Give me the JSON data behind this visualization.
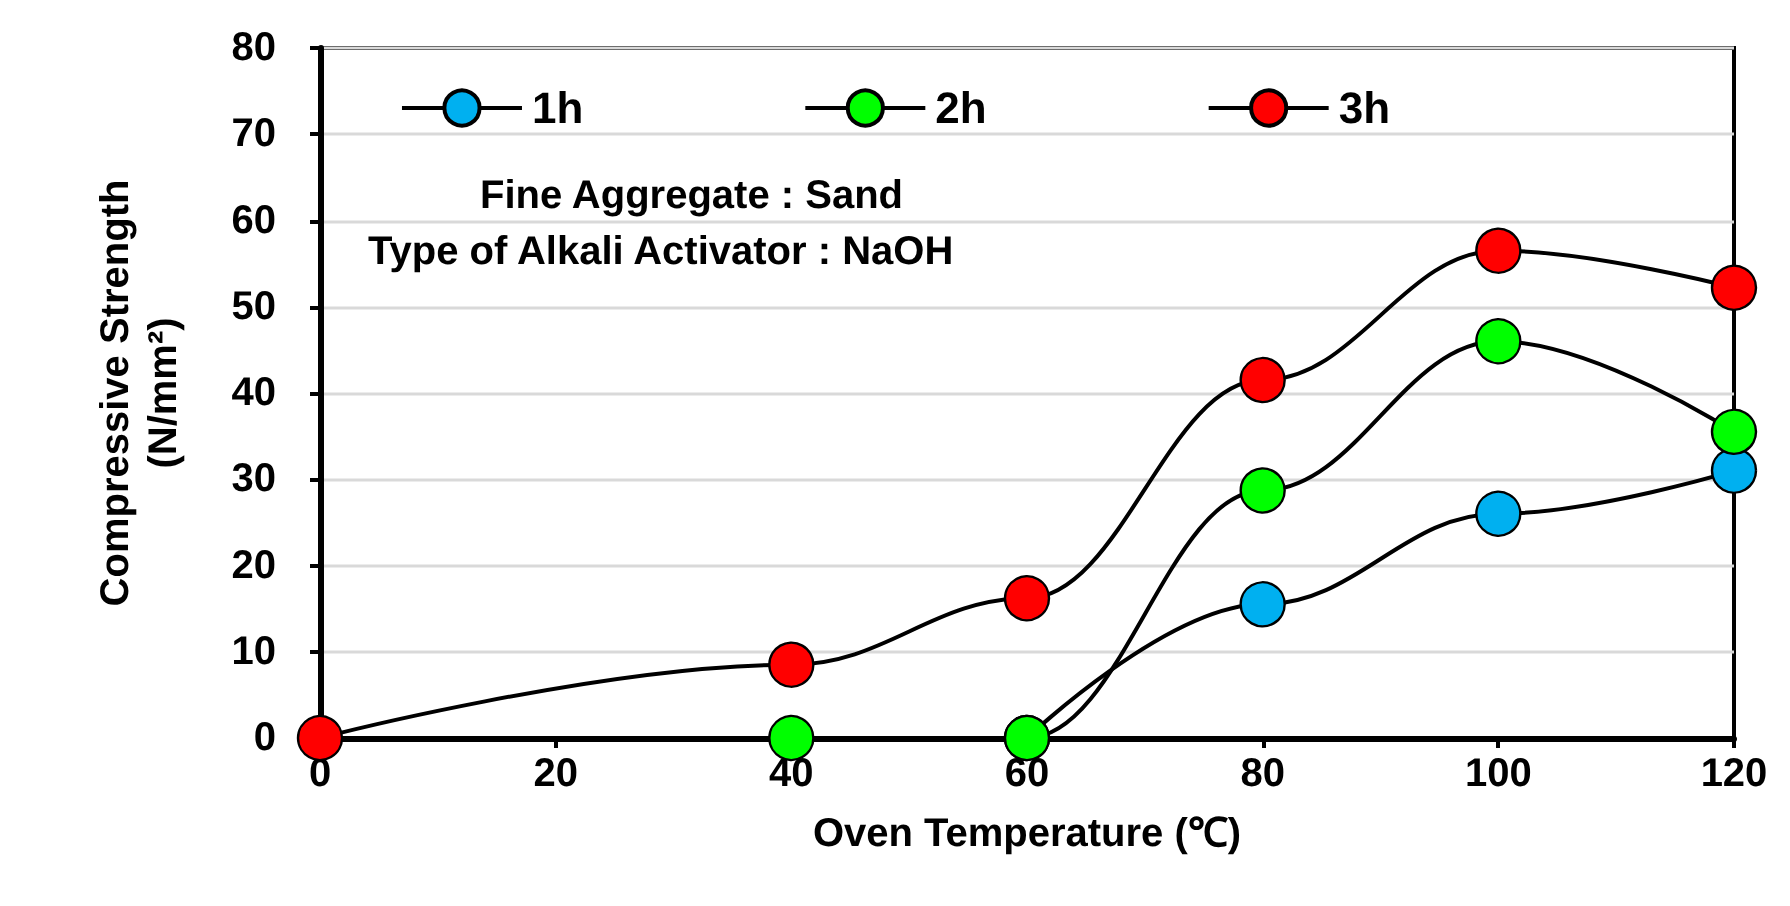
{
  "chart_data": {
    "type": "line",
    "xlabel": "Oven Temperature (℃)",
    "ylabel": "Compressive Strength\n(N/mm²)",
    "x": [
      0,
      40,
      60,
      80,
      100,
      120
    ],
    "series": [
      {
        "name": "1h",
        "color": "#00b0f0",
        "values": [
          null,
          null,
          0,
          15.5,
          26,
          31
        ]
      },
      {
        "name": "2h",
        "color": "#00ff00",
        "values": [
          null,
          0,
          0,
          28.7,
          46,
          35.5
        ]
      },
      {
        "name": "3h",
        "color": "#ff0000",
        "values": [
          0,
          8.5,
          16.2,
          41.5,
          56.5,
          52.2
        ]
      }
    ],
    "xlim": [
      0,
      120
    ],
    "xticks": [
      0,
      20,
      40,
      60,
      80,
      100,
      120
    ],
    "ylim": [
      0,
      80
    ],
    "yticks": [
      0,
      10,
      20,
      30,
      40,
      50,
      60,
      70,
      80
    ],
    "grid": "y",
    "legend": "top",
    "marker": "circle",
    "line_style": "solid",
    "annotations": [
      "Fine Aggregate : Sand",
      "Type of Alkali Activator : NaOH"
    ]
  }
}
